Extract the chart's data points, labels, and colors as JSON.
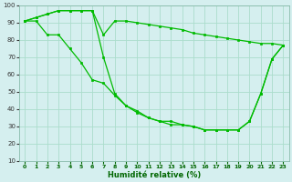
{
  "xlabel": "Humidité relative (%)",
  "background_color": "#d5efef",
  "grid_color": "#aaddcc",
  "line_color": "#00bb00",
  "xlim": [
    -0.5,
    23.5
  ],
  "ylim": [
    10,
    100
  ],
  "yticks": [
    10,
    20,
    30,
    40,
    50,
    60,
    70,
    80,
    90,
    100
  ],
  "xticks": [
    0,
    1,
    2,
    3,
    4,
    5,
    6,
    7,
    8,
    9,
    10,
    11,
    12,
    13,
    14,
    15,
    16,
    17,
    18,
    19,
    20,
    21,
    22,
    23
  ],
  "series": [
    [
      91,
      93,
      95,
      97,
      97,
      97,
      97,
      83,
      91,
      91,
      90,
      89,
      88,
      87,
      86,
      84,
      83,
      82,
      81,
      80,
      79,
      78,
      78,
      77
    ],
    [
      91,
      93,
      95,
      97,
      97,
      97,
      97,
      70,
      49,
      42,
      39,
      35,
      33,
      31,
      31,
      30,
      28,
      28,
      28,
      28,
      33,
      49,
      69,
      77
    ],
    [
      91,
      91,
      83,
      83,
      75,
      67,
      57,
      55,
      48,
      42,
      38,
      35,
      33,
      33,
      31,
      30,
      28,
      28,
      28,
      28,
      33,
      49,
      69,
      77
    ]
  ]
}
